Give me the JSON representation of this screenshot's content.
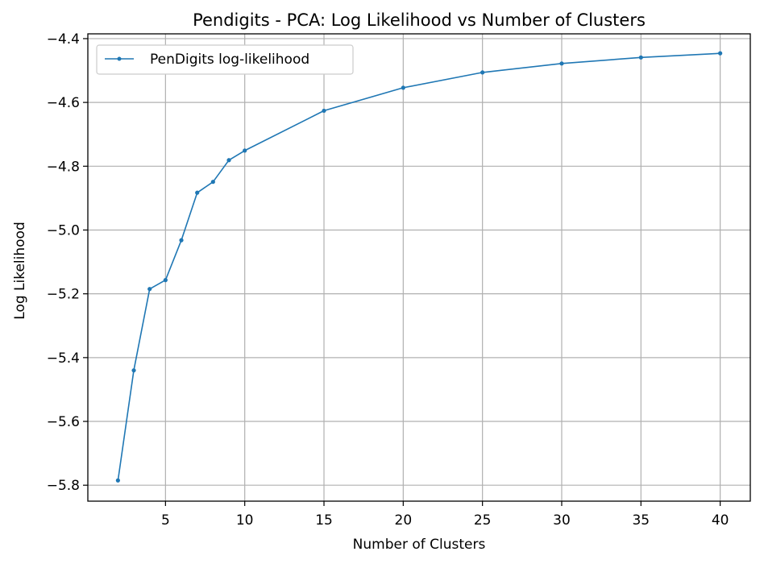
{
  "chart_data": {
    "type": "line",
    "title": "Pendigits - PCA: Log Likelihood vs Number of Clusters",
    "xlabel": "Number of Clusters",
    "ylabel": "Log Likelihood",
    "xlim": [
      0.1,
      41.9
    ],
    "ylim": [
      -5.85,
      -4.385
    ],
    "xticks": [
      5,
      10,
      15,
      20,
      25,
      30,
      35,
      40
    ],
    "yticks": [
      -5.8,
      -5.6,
      -5.4,
      -5.2,
      -5.0,
      -4.8,
      -4.6,
      -4.4
    ],
    "xtick_labels": [
      "5",
      "10",
      "15",
      "20",
      "25",
      "30",
      "35",
      "40"
    ],
    "ytick_labels": [
      "−5.8",
      "−5.6",
      "−5.4",
      "−5.2",
      "−5.0",
      "−4.8",
      "−4.6",
      "−4.4"
    ],
    "grid": true,
    "legend_position": "top-left",
    "series": [
      {
        "name": "PenDigits log-likelihood",
        "color": "#1f77b4",
        "x": [
          2,
          3,
          4,
          5,
          6,
          7,
          8,
          9,
          10,
          15,
          20,
          25,
          30,
          35,
          40
        ],
        "y": [
          -5.785,
          -5.44,
          -5.185,
          -5.157,
          -5.032,
          -4.883,
          -4.849,
          -4.781,
          -4.751,
          -4.626,
          -4.554,
          -4.506,
          -4.478,
          -4.459,
          -4.446
        ]
      }
    ]
  }
}
